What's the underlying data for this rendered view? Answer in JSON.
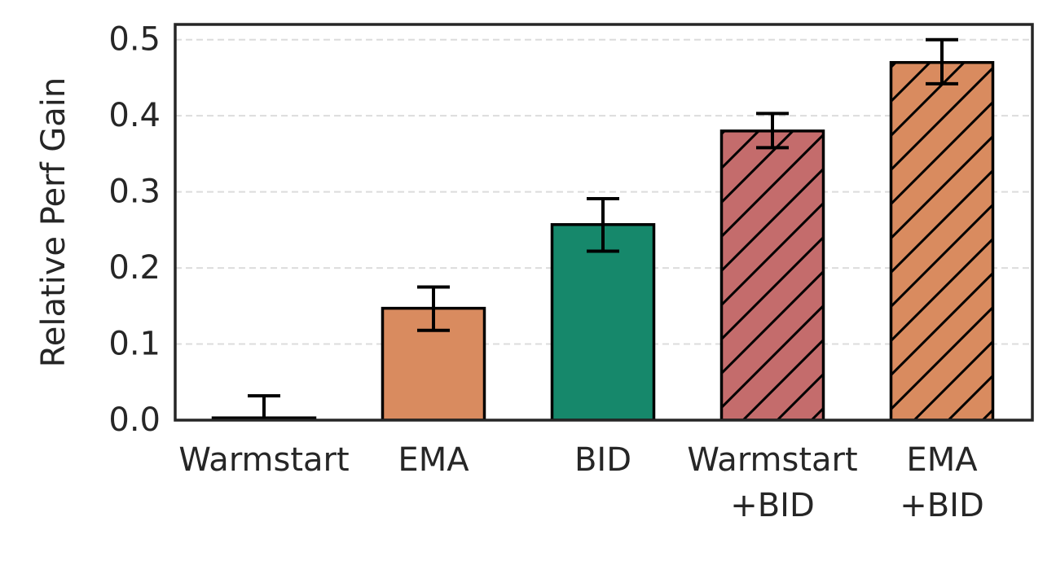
{
  "chart_data": {
    "type": "bar",
    "title": "",
    "xlabel": "",
    "ylabel": "Relative Perf Gain",
    "ylim": [
      0,
      0.52
    ],
    "yticks": [
      "0.0",
      "0.1",
      "0.2",
      "0.3",
      "0.4",
      "0.5"
    ],
    "grid": "horizontal dashed",
    "categories": [
      {
        "lines": [
          "Warmstart"
        ]
      },
      {
        "lines": [
          "EMA"
        ]
      },
      {
        "lines": [
          "BID"
        ]
      },
      {
        "lines": [
          "Warmstart",
          "+BID"
        ]
      },
      {
        "lines": [
          "EMA",
          "+BID"
        ]
      }
    ],
    "values": [
      0.003,
      0.147,
      0.257,
      0.38,
      0.47
    ],
    "error_low": [
      -0.03,
      0.118,
      0.222,
      0.358,
      0.442
    ],
    "error_high": [
      0.032,
      0.175,
      0.291,
      0.403,
      0.5
    ],
    "colors": [
      "#c46c6c",
      "#d98b5f",
      "#16886b",
      "#c46c6c",
      "#d98b5f"
    ],
    "hatched": [
      false,
      false,
      false,
      true,
      true
    ]
  }
}
